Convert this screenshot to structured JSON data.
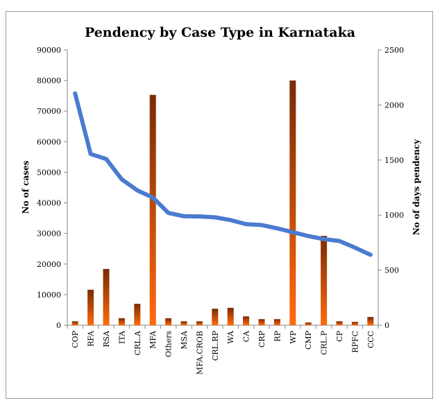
{
  "chart_data": {
    "type": "bar",
    "title": "Pendency by Case Type in Karnataka",
    "categories": [
      "COP",
      "RFA",
      "RSA",
      "ITA",
      "CRL.A",
      "MFA",
      "Others",
      "MSA",
      "MFA.CROB",
      "CRL.RP",
      "WA",
      "CA",
      "CRP",
      "RP",
      "WP",
      "CMP",
      "CRL.P",
      "CP",
      "RPFC",
      "CCC"
    ],
    "xlabel": "",
    "ylabel": "No of cases",
    "y2label": "No of days pendency",
    "ylim": [
      0,
      90000
    ],
    "y2lim": [
      0,
      2500
    ],
    "yticks": [
      "0",
      "10000",
      "20000",
      "30000",
      "40000",
      "50000",
      "60000",
      "70000",
      "80000",
      "90000"
    ],
    "y2ticks": [
      "0",
      "500",
      "1000",
      "1500",
      "2000",
      "2500"
    ],
    "grid": false,
    "legend": "none",
    "series": [
      {
        "type": "bar",
        "axis": "left",
        "values": [
          1300,
          11600,
          18400,
          2300,
          7000,
          75300,
          2300,
          1300,
          1300,
          5400,
          5700,
          2900,
          2000,
          2000,
          80000,
          900,
          29200,
          1300,
          1100,
          2700
        ]
      },
      {
        "type": "line",
        "axis": "right",
        "values": [
          2105,
          1555,
          1510,
          1325,
          1225,
          1160,
          1020,
          990,
          988,
          980,
          955,
          918,
          910,
          880,
          845,
          810,
          782,
          765,
          705,
          640
        ]
      }
    ],
    "colors": {
      "bar_top": "#7a2a05",
      "bar_bottom": "#ff6a0c",
      "line": "#4a7bd0",
      "axis": "#868686",
      "border": "#9a9a9a"
    }
  }
}
